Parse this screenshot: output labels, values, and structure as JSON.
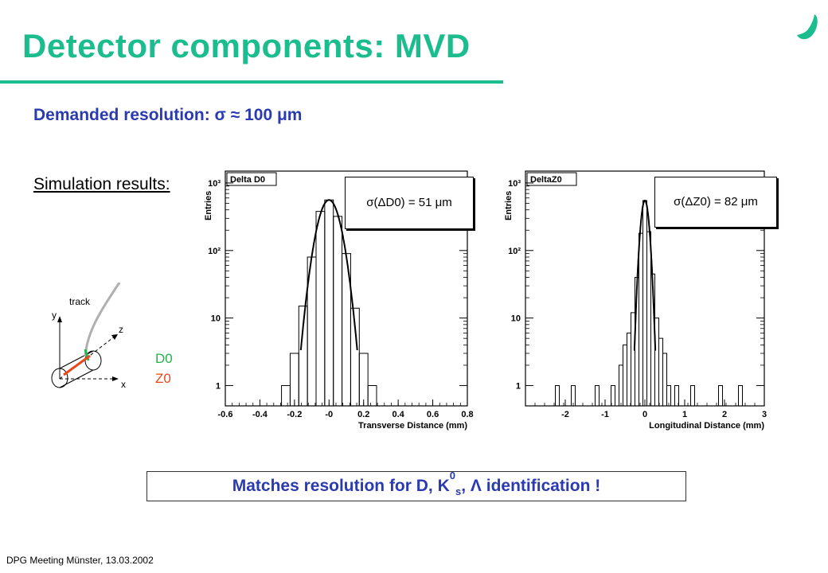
{
  "slide": {
    "title": "Detector components: MVD",
    "resolution_line": "Demanded resolution: σ ≈ 100 μm",
    "simulation_label": "Simulation results:",
    "conclusion": {
      "prefix": "Matches resolution for D, K",
      "sup": "0",
      "sub": "s",
      "suffix": ", Λ identification !"
    },
    "footer": "DPG Meeting Münster,  13.03.2002",
    "colors": {
      "title": "#1bbd8f",
      "accent": "#2a3ab0",
      "d0": "#1fb54a",
      "z0": "#e8471b"
    },
    "logo_icon": "checkmark-logo-icon"
  },
  "diagram": {
    "axis_y": "y",
    "axis_z": "z",
    "axis_x": "x",
    "track_label": "track",
    "legend_d0": "D0",
    "legend_z0": "Z0"
  },
  "sigma_boxes": {
    "d0": "σ(ΔD0) = 51 μm",
    "z0": "σ(ΔZ0) = 82 μm"
  },
  "chart_data": [
    {
      "type": "bar",
      "title": "Delta D0",
      "xlabel": "Transverse Distance (mm)",
      "ylabel": "Entries",
      "xlim": [
        -0.6,
        0.8
      ],
      "y_scale": "log",
      "ylim": [
        0.5,
        1500
      ],
      "xticks": [
        "-0.6",
        "-0.4",
        "-0.2",
        "-0",
        "0.2",
        "0.4",
        "0.6",
        "0.8"
      ],
      "yticks": [
        "1",
        "10",
        "10²",
        "10³"
      ],
      "bin_width": 0.05,
      "bins": [
        {
          "x": -0.25,
          "y": 1
        },
        {
          "x": -0.2,
          "y": 3
        },
        {
          "x": -0.15,
          "y": 15
        },
        {
          "x": -0.1,
          "y": 80
        },
        {
          "x": -0.05,
          "y": 380
        },
        {
          "x": 0.0,
          "y": 560
        },
        {
          "x": 0.05,
          "y": 320
        },
        {
          "x": 0.1,
          "y": 90
        },
        {
          "x": 0.15,
          "y": 14
        },
        {
          "x": 0.2,
          "y": 3
        },
        {
          "x": 0.25,
          "y": 1
        }
      ],
      "fit": {
        "type": "gaussian",
        "amplitude": 560,
        "mean": 0.0,
        "sigma": 0.051
      }
    },
    {
      "type": "bar",
      "title": "DeltaZ0",
      "xlabel": "Longitudinal Distance (mm)",
      "ylabel": "Entries",
      "xlim": [
        -3,
        3
      ],
      "y_scale": "log",
      "ylim": [
        0.5,
        1500
      ],
      "xticks": [
        "-2",
        "-1",
        "0",
        "1",
        "2",
        "3"
      ],
      "yticks": [
        "1",
        "10",
        "10²",
        "10³"
      ],
      "bin_width": 0.1,
      "bins": [
        {
          "x": -2.2,
          "y": 1
        },
        {
          "x": -1.8,
          "y": 1
        },
        {
          "x": -1.2,
          "y": 1
        },
        {
          "x": -0.8,
          "y": 1
        },
        {
          "x": -0.6,
          "y": 2
        },
        {
          "x": -0.5,
          "y": 4
        },
        {
          "x": -0.4,
          "y": 6
        },
        {
          "x": -0.3,
          "y": 12
        },
        {
          "x": -0.2,
          "y": 40
        },
        {
          "x": -0.1,
          "y": 180
        },
        {
          "x": 0.0,
          "y": 550
        },
        {
          "x": 0.1,
          "y": 190
        },
        {
          "x": 0.2,
          "y": 45
        },
        {
          "x": 0.3,
          "y": 10
        },
        {
          "x": 0.4,
          "y": 5
        },
        {
          "x": 0.5,
          "y": 3
        },
        {
          "x": 0.6,
          "y": 1
        },
        {
          "x": 0.8,
          "y": 1
        },
        {
          "x": 1.2,
          "y": 1
        },
        {
          "x": 1.9,
          "y": 1
        },
        {
          "x": 2.4,
          "y": 1
        }
      ],
      "fit": {
        "type": "gaussian",
        "amplitude": 550,
        "mean": 0.0,
        "sigma": 0.082
      }
    }
  ]
}
